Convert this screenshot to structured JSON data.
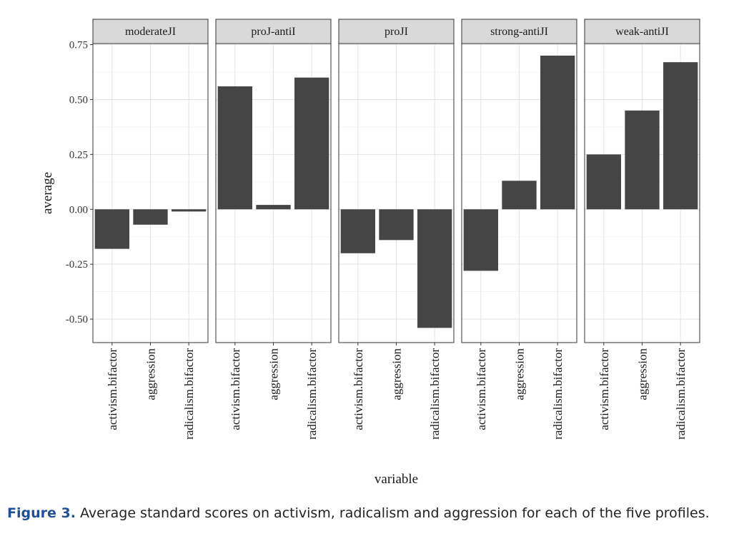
{
  "chart_data": {
    "type": "bar",
    "facets": [
      "moderateJI",
      "proJ-antiI",
      "proJI",
      "strong-antiJI",
      "weak-antiJI"
    ],
    "categories": [
      "activism.bifactor",
      "aggression",
      "radicalism.bifactor"
    ],
    "series": [
      {
        "name": "moderateJI",
        "values": [
          -0.18,
          -0.07,
          -0.01
        ]
      },
      {
        "name": "proJ-antiI",
        "values": [
          0.56,
          0.02,
          0.6
        ]
      },
      {
        "name": "proJI",
        "values": [
          -0.2,
          -0.14,
          -0.54
        ]
      },
      {
        "name": "strong-antiJI",
        "values": [
          -0.28,
          0.13,
          0.7
        ]
      },
      {
        "name": "weak-antiJI",
        "values": [
          0.25,
          0.45,
          0.67
        ]
      }
    ],
    "yticks": [
      -0.5,
      -0.25,
      0,
      0.25,
      0.5,
      0.75
    ],
    "ytick_labels": [
      "-0.50",
      "-0.25",
      "0.00",
      "0.25",
      "0.50",
      "0.75"
    ],
    "ylim": [
      -0.607,
      0.755
    ],
    "xlabel": "variable",
    "ylabel": "average",
    "grid": true,
    "bar_color": "#454545"
  },
  "caption": {
    "label": "Figure 3.",
    "text": "Average standard scores on activism, radicalism and aggression for each of the five profiles."
  }
}
